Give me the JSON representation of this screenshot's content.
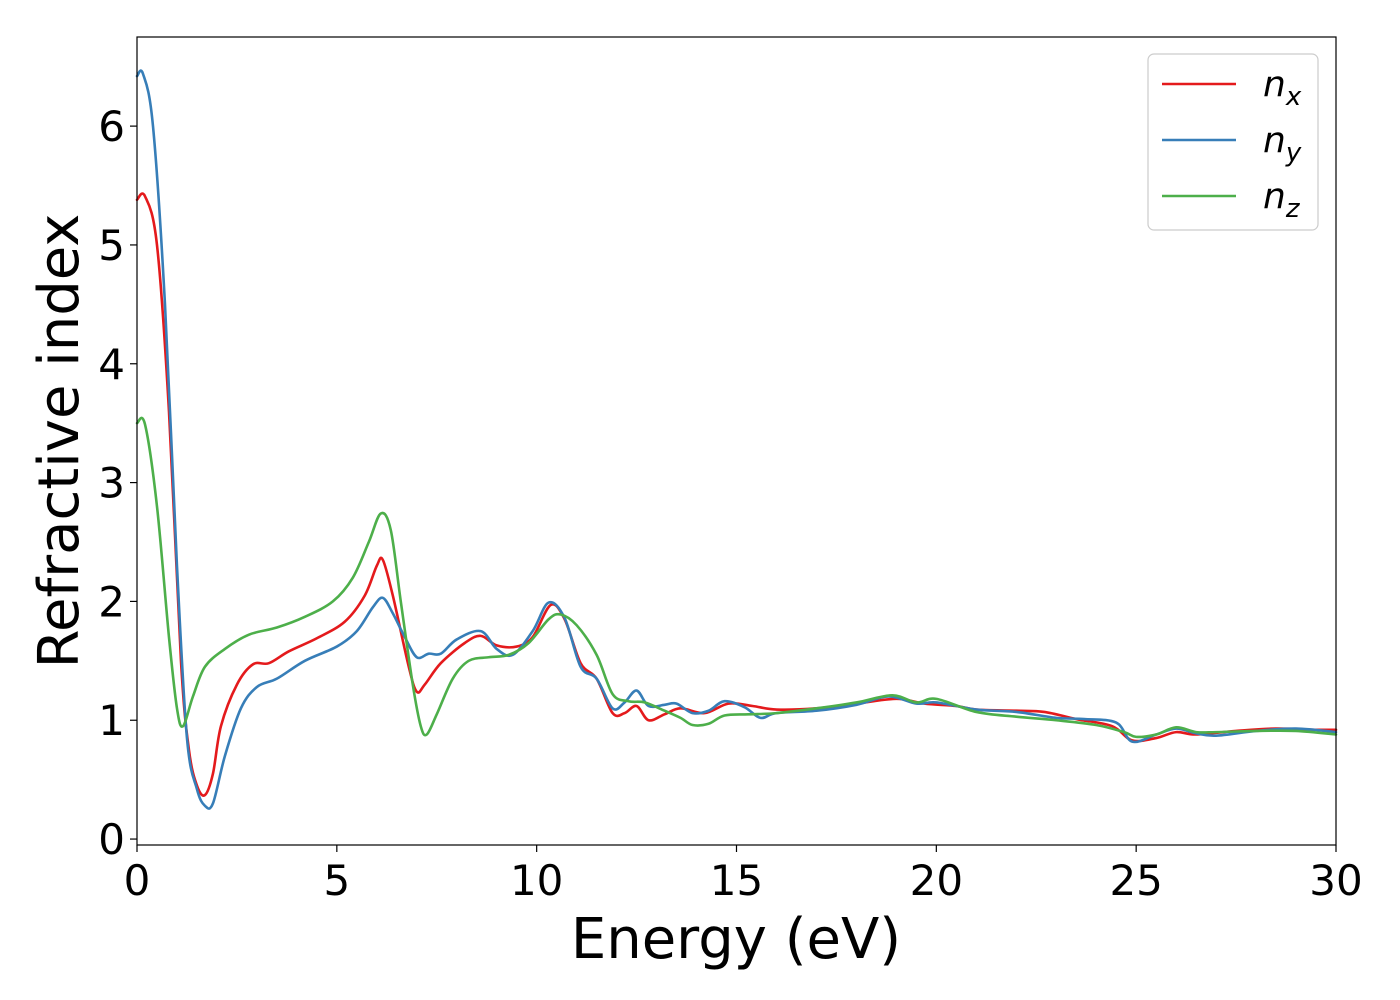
{
  "chart_data": {
    "type": "line",
    "xlabel": "Energy (eV)",
    "ylabel": "Refractive index",
    "xlim": [
      0,
      30
    ],
    "ylim": [
      -0.05,
      6.75
    ],
    "x_ticks": [
      0,
      5,
      10,
      15,
      20,
      25,
      30
    ],
    "y_ticks": [
      0,
      1,
      2,
      3,
      4,
      5,
      6
    ],
    "grid": false,
    "legend_position": "top-right",
    "series": [
      {
        "name": "n_x",
        "base": "n",
        "sub": "x",
        "color": "#e41a1c",
        "points": [
          [
            0,
            5.38
          ],
          [
            0.2,
            5.41
          ],
          [
            0.5,
            5.0
          ],
          [
            0.8,
            3.6
          ],
          [
            1.1,
            1.5
          ],
          [
            1.3,
            0.75
          ],
          [
            1.5,
            0.45
          ],
          [
            1.7,
            0.37
          ],
          [
            1.9,
            0.55
          ],
          [
            2.1,
            0.95
          ],
          [
            2.5,
            1.3
          ],
          [
            2.9,
            1.47
          ],
          [
            3.3,
            1.48
          ],
          [
            3.8,
            1.58
          ],
          [
            4.5,
            1.69
          ],
          [
            5.2,
            1.83
          ],
          [
            5.7,
            2.05
          ],
          [
            6.0,
            2.3
          ],
          [
            6.15,
            2.35
          ],
          [
            6.4,
            2.05
          ],
          [
            6.8,
            1.45
          ],
          [
            7.0,
            1.24
          ],
          [
            7.2,
            1.3
          ],
          [
            7.6,
            1.48
          ],
          [
            8.2,
            1.65
          ],
          [
            8.6,
            1.71
          ],
          [
            9.0,
            1.63
          ],
          [
            9.5,
            1.62
          ],
          [
            9.9,
            1.7
          ],
          [
            10.35,
            1.97
          ],
          [
            10.7,
            1.85
          ],
          [
            11.1,
            1.48
          ],
          [
            11.5,
            1.35
          ],
          [
            11.9,
            1.06
          ],
          [
            12.2,
            1.06
          ],
          [
            12.5,
            1.12
          ],
          [
            12.8,
            1.0
          ],
          [
            13.2,
            1.05
          ],
          [
            13.6,
            1.1
          ],
          [
            14.2,
            1.06
          ],
          [
            14.8,
            1.14
          ],
          [
            15.4,
            1.12
          ],
          [
            16.0,
            1.09
          ],
          [
            17.0,
            1.1
          ],
          [
            18.0,
            1.14
          ],
          [
            19.0,
            1.18
          ],
          [
            19.7,
            1.14
          ],
          [
            20.5,
            1.12
          ],
          [
            21.0,
            1.09
          ],
          [
            22.0,
            1.08
          ],
          [
            22.7,
            1.07
          ],
          [
            23.5,
            1.01
          ],
          [
            24.4,
            0.95
          ],
          [
            24.9,
            0.83
          ],
          [
            25.5,
            0.85
          ],
          [
            26.0,
            0.9
          ],
          [
            26.5,
            0.88
          ],
          [
            27.5,
            0.91
          ],
          [
            28.5,
            0.93
          ],
          [
            29.5,
            0.92
          ],
          [
            30,
            0.92
          ]
        ]
      },
      {
        "name": "n_y",
        "base": "n",
        "sub": "y",
        "color": "#377eb8",
        "points": [
          [
            0,
            6.42
          ],
          [
            0.15,
            6.44
          ],
          [
            0.4,
            6.0
          ],
          [
            0.7,
            4.5
          ],
          [
            1.0,
            2.3
          ],
          [
            1.25,
            0.85
          ],
          [
            1.5,
            0.42
          ],
          [
            1.7,
            0.28
          ],
          [
            1.9,
            0.3
          ],
          [
            2.2,
            0.7
          ],
          [
            2.6,
            1.1
          ],
          [
            3.0,
            1.28
          ],
          [
            3.5,
            1.35
          ],
          [
            4.2,
            1.5
          ],
          [
            5.0,
            1.62
          ],
          [
            5.5,
            1.75
          ],
          [
            5.9,
            1.95
          ],
          [
            6.15,
            2.03
          ],
          [
            6.4,
            1.9
          ],
          [
            6.7,
            1.7
          ],
          [
            7.0,
            1.53
          ],
          [
            7.3,
            1.56
          ],
          [
            7.6,
            1.56
          ],
          [
            8.0,
            1.68
          ],
          [
            8.6,
            1.75
          ],
          [
            9.0,
            1.6
          ],
          [
            9.4,
            1.55
          ],
          [
            9.9,
            1.75
          ],
          [
            10.3,
            1.99
          ],
          [
            10.7,
            1.86
          ],
          [
            11.1,
            1.45
          ],
          [
            11.5,
            1.35
          ],
          [
            11.9,
            1.1
          ],
          [
            12.2,
            1.15
          ],
          [
            12.5,
            1.25
          ],
          [
            12.8,
            1.12
          ],
          [
            13.2,
            1.13
          ],
          [
            13.5,
            1.14
          ],
          [
            13.9,
            1.06
          ],
          [
            14.3,
            1.08
          ],
          [
            14.7,
            1.16
          ],
          [
            15.2,
            1.11
          ],
          [
            15.6,
            1.02
          ],
          [
            16.0,
            1.06
          ],
          [
            17.0,
            1.08
          ],
          [
            18.0,
            1.13
          ],
          [
            18.8,
            1.2
          ],
          [
            19.5,
            1.14
          ],
          [
            20.0,
            1.15
          ],
          [
            21.0,
            1.09
          ],
          [
            22.0,
            1.07
          ],
          [
            23.0,
            1.02
          ],
          [
            23.7,
            1.01
          ],
          [
            24.5,
            0.98
          ],
          [
            24.9,
            0.82
          ],
          [
            25.5,
            0.88
          ],
          [
            26.0,
            0.93
          ],
          [
            26.5,
            0.89
          ],
          [
            27.0,
            0.87
          ],
          [
            28.0,
            0.91
          ],
          [
            29.0,
            0.93
          ],
          [
            30,
            0.9
          ]
        ]
      },
      {
        "name": "n_z",
        "base": "n",
        "sub": "z",
        "color": "#4daf4a",
        "points": [
          [
            0,
            3.5
          ],
          [
            0.2,
            3.49
          ],
          [
            0.5,
            2.8
          ],
          [
            0.8,
            1.7
          ],
          [
            1.0,
            1.1
          ],
          [
            1.15,
            0.95
          ],
          [
            1.4,
            1.2
          ],
          [
            1.7,
            1.45
          ],
          [
            2.2,
            1.6
          ],
          [
            2.8,
            1.72
          ],
          [
            3.5,
            1.78
          ],
          [
            4.2,
            1.87
          ],
          [
            4.9,
            2.0
          ],
          [
            5.4,
            2.2
          ],
          [
            5.8,
            2.5
          ],
          [
            6.1,
            2.74
          ],
          [
            6.35,
            2.6
          ],
          [
            6.6,
            2.0
          ],
          [
            6.9,
            1.3
          ],
          [
            7.1,
            0.95
          ],
          [
            7.25,
            0.88
          ],
          [
            7.5,
            1.05
          ],
          [
            7.9,
            1.35
          ],
          [
            8.3,
            1.5
          ],
          [
            8.8,
            1.53
          ],
          [
            9.3,
            1.55
          ],
          [
            9.8,
            1.65
          ],
          [
            10.3,
            1.85
          ],
          [
            10.6,
            1.89
          ],
          [
            11.0,
            1.8
          ],
          [
            11.5,
            1.55
          ],
          [
            11.9,
            1.22
          ],
          [
            12.3,
            1.16
          ],
          [
            12.7,
            1.15
          ],
          [
            13.2,
            1.08
          ],
          [
            13.6,
            1.02
          ],
          [
            13.9,
            0.96
          ],
          [
            14.3,
            0.97
          ],
          [
            14.7,
            1.04
          ],
          [
            15.3,
            1.05
          ],
          [
            16.0,
            1.06
          ],
          [
            17.0,
            1.1
          ],
          [
            18.0,
            1.15
          ],
          [
            18.9,
            1.21
          ],
          [
            19.5,
            1.15
          ],
          [
            20.0,
            1.18
          ],
          [
            21.0,
            1.07
          ],
          [
            22.0,
            1.03
          ],
          [
            23.0,
            1.0
          ],
          [
            24.0,
            0.96
          ],
          [
            24.7,
            0.9
          ],
          [
            25.0,
            0.86
          ],
          [
            25.5,
            0.88
          ],
          [
            26.0,
            0.94
          ],
          [
            26.5,
            0.9
          ],
          [
            27.0,
            0.9
          ],
          [
            28.0,
            0.91
          ],
          [
            29.0,
            0.91
          ],
          [
            30,
            0.88
          ]
        ]
      }
    ]
  }
}
